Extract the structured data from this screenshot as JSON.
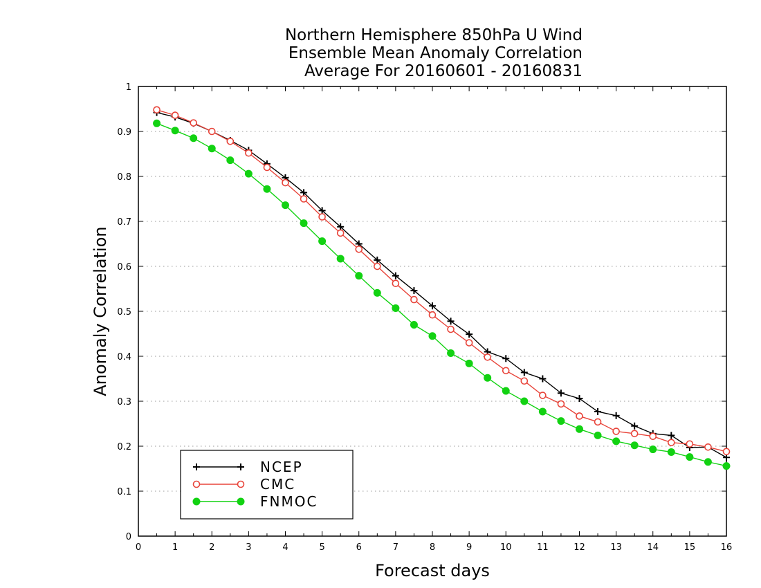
{
  "chart_data": {
    "type": "line",
    "title_lines": [
      "Northern Hemisphere 850hPa U Wind",
      "Ensemble Mean Anomaly Correlation",
      "Average For 20160601 - 20160831"
    ],
    "xlabel": "Forecast days",
    "ylabel": "Anomaly Correlation",
    "xlim": [
      0,
      16
    ],
    "ylim": [
      0,
      1
    ],
    "x_ticks": [
      "0",
      "1",
      "2",
      "3",
      "4",
      "5",
      "6",
      "7",
      "8",
      "9",
      "10",
      "11",
      "12",
      "13",
      "14",
      "15",
      "16"
    ],
    "y_ticks": [
      "0",
      "0.1",
      "0.2",
      "0.3",
      "0.4",
      "0.5",
      "0.6",
      "0.7",
      "0.8",
      "0.9",
      "1"
    ],
    "grid": "horizontal dotted",
    "legend_position": "bottom-left",
    "x": [
      0.5,
      1,
      1.5,
      2,
      2.5,
      3,
      3.5,
      4,
      4.5,
      5,
      5.5,
      6,
      6.5,
      7,
      7.5,
      8,
      8.5,
      9,
      9.5,
      10,
      10.5,
      11,
      11.5,
      12,
      12.5,
      13,
      13.5,
      14,
      14.5,
      15,
      15.5,
      16
    ],
    "series": [
      {
        "name": "NCEP",
        "color": "#000000",
        "marker": "plus",
        "values": [
          0.942,
          0.932,
          0.918,
          0.9,
          0.88,
          0.858,
          0.828,
          0.797,
          0.764,
          0.724,
          0.688,
          0.65,
          0.614,
          0.579,
          0.546,
          0.512,
          0.478,
          0.449,
          0.41,
          0.395,
          0.364,
          0.35,
          0.318,
          0.306,
          0.277,
          0.268,
          0.245,
          0.228,
          0.224,
          0.197,
          0.198,
          0.175
        ]
      },
      {
        "name": "CMC",
        "color": "#e8443a",
        "marker": "open-circle",
        "values": [
          0.948,
          0.936,
          0.919,
          0.9,
          0.878,
          0.852,
          0.82,
          0.786,
          0.75,
          0.71,
          0.674,
          0.638,
          0.6,
          0.562,
          0.526,
          0.492,
          0.46,
          0.43,
          0.398,
          0.368,
          0.345,
          0.313,
          0.294,
          0.267,
          0.254,
          0.233,
          0.228,
          0.222,
          0.208,
          0.205,
          0.198,
          0.188
        ]
      },
      {
        "name": "FNMOC",
        "color": "#12d212",
        "marker": "filled-circle",
        "values": [
          0.918,
          0.902,
          0.885,
          0.862,
          0.836,
          0.806,
          0.772,
          0.736,
          0.696,
          0.656,
          0.617,
          0.579,
          0.541,
          0.507,
          0.47,
          0.445,
          0.407,
          0.384,
          0.352,
          0.323,
          0.3,
          0.277,
          0.256,
          0.238,
          0.224,
          0.211,
          0.202,
          0.193,
          0.187,
          0.176,
          0.165,
          0.156
        ]
      }
    ]
  }
}
